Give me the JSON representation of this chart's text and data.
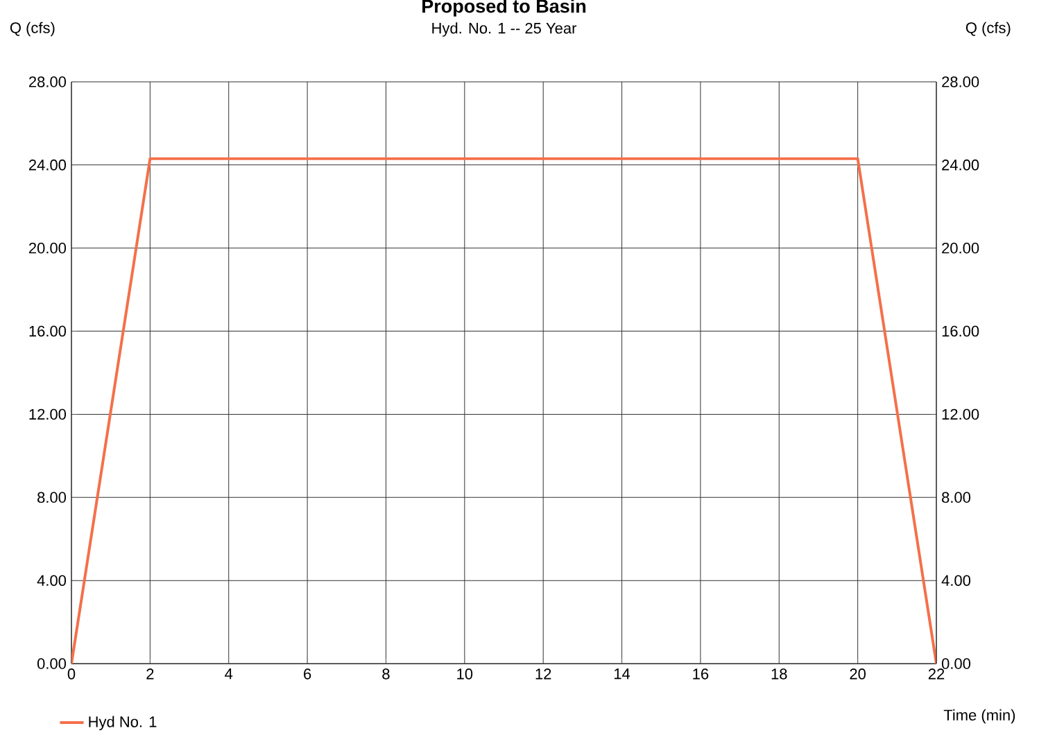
{
  "chart_data": {
    "type": "line",
    "title": "Proposed to Basin",
    "subtitle": "Hyd. No. 1 -- 25 Year",
    "xlabel": "Time (min)",
    "ylabel": "Q (cfs)",
    "y2label": "Q (cfs)",
    "x": [
      0,
      2,
      20,
      22
    ],
    "series": [
      {
        "name": "Hyd No. 1",
        "color": "#f4704a",
        "values": [
          0,
          24.3,
          24.3,
          0
        ]
      }
    ],
    "xlim": [
      0,
      22
    ],
    "xticks": [
      0,
      2,
      4,
      6,
      8,
      10,
      12,
      14,
      16,
      18,
      20,
      22
    ],
    "ylim": [
      0,
      28
    ],
    "yticks": [
      {
        "value": 0,
        "label": "0.00"
      },
      {
        "value": 4,
        "label": "4.00"
      },
      {
        "value": 8,
        "label": "8.00"
      },
      {
        "value": 12,
        "label": "12.00"
      },
      {
        "value": 16,
        "label": "16.00"
      },
      {
        "value": 20,
        "label": "20.00"
      },
      {
        "value": 24,
        "label": "24.00"
      },
      {
        "value": 28,
        "label": "28.00"
      }
    ],
    "y2lim": [
      0,
      28
    ],
    "y2ticks": [
      {
        "value": 0,
        "label": "0.00"
      },
      {
        "value": 4,
        "label": "4.00"
      },
      {
        "value": 8,
        "label": "8.00"
      },
      {
        "value": 12,
        "label": "12.00"
      },
      {
        "value": 16,
        "label": "16.00"
      },
      {
        "value": 20,
        "label": "20.00"
      },
      {
        "value": 24,
        "label": "24.00"
      },
      {
        "value": 28,
        "label": "28.00"
      }
    ],
    "grid": true,
    "legend": "bottom left",
    "marker": "none",
    "line_style": "solid"
  }
}
